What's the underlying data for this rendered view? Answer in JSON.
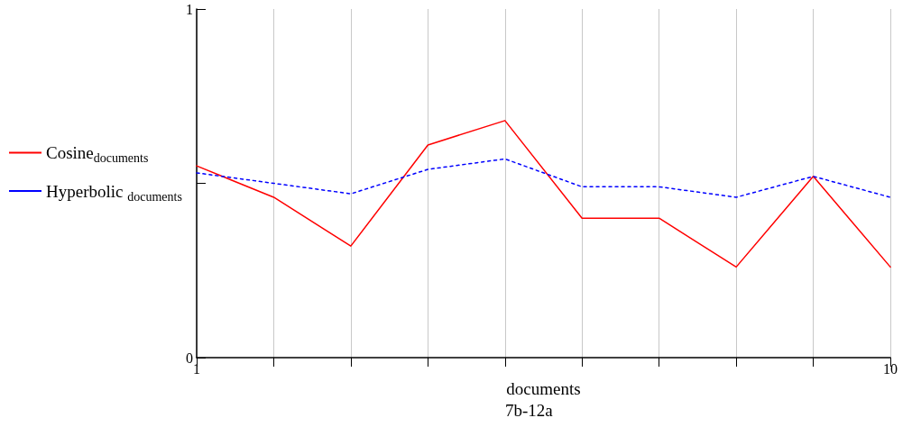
{
  "chart_data": {
    "type": "line",
    "xlabel": "documents",
    "annotations": [
      "7b-12a"
    ],
    "x": [
      1,
      2,
      3,
      4,
      5,
      6,
      7,
      8,
      9,
      10
    ],
    "series": [
      {
        "name": "Cosine$_{documents}$",
        "color": "#ff0000",
        "line_style": "solid",
        "values": [
          0.55,
          0.46,
          0.32,
          0.61,
          0.68,
          0.4,
          0.4,
          0.26,
          0.52,
          0.26
        ]
      },
      {
        "name": "Hyperbolic $_{documents}$",
        "color": "#0000ff",
        "line_style": "dashed",
        "values": [
          0.53,
          0.5,
          0.47,
          0.54,
          0.57,
          0.49,
          0.49,
          0.46,
          0.52,
          0.46
        ]
      }
    ],
    "xlim": [
      1,
      10
    ],
    "xticks": [
      1,
      {
        "value": 2,
        "label": null
      },
      {
        "value": 3,
        "label": null
      },
      {
        "value": 4,
        "label": null
      },
      {
        "value": 5,
        "label": null
      },
      {
        "value": 6,
        "label": null
      },
      {
        "value": 7,
        "label": null
      },
      {
        "value": 8,
        "label": null
      },
      {
        "value": 9,
        "label": null
      },
      10
    ],
    "ylim": [
      0,
      1
    ],
    "yticks": [
      0,
      {
        "value": 0.5,
        "label": null
      },
      1
    ],
    "grid": "x",
    "legend": "left",
    "marker": "none"
  }
}
